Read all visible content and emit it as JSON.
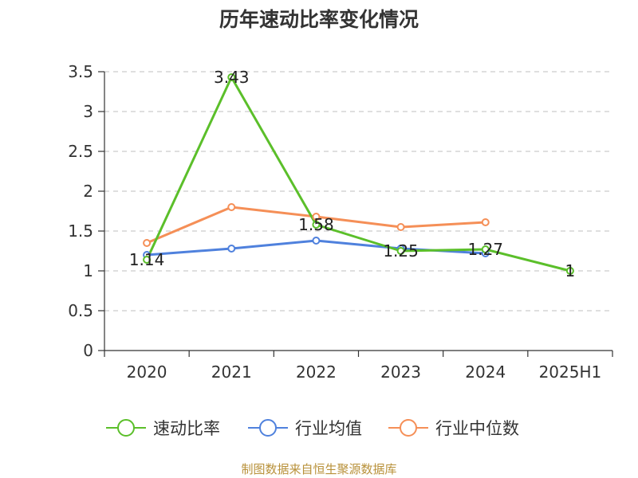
{
  "chart_data": {
    "type": "line",
    "title": "历年速动比率变化情况",
    "categories": [
      "2020",
      "2021",
      "2022",
      "2023",
      "2024",
      "2025H1"
    ],
    "ylim": [
      0,
      3.5
    ],
    "yticks": [
      "0",
      "0.5",
      "1",
      "1.5",
      "2",
      "2.5",
      "3",
      "3.5"
    ],
    "grid": true,
    "legend_position": "bottom",
    "series": [
      {
        "name": "速动比率",
        "color": "#5bbf2a",
        "values": [
          1.14,
          3.43,
          1.58,
          1.25,
          1.27,
          1
        ],
        "labels": [
          "1.14",
          "3.43",
          "1.58",
          "1.25",
          "1.27",
          "1"
        ]
      },
      {
        "name": "行业均值",
        "color": "#4f81dd",
        "values": [
          1.2,
          1.28,
          1.38,
          1.28,
          1.22,
          null
        ]
      },
      {
        "name": "行业中位数",
        "color": "#f58f57",
        "values": [
          1.35,
          1.8,
          1.68,
          1.55,
          1.61,
          null
        ]
      }
    ]
  },
  "source_text": "制图数据来自恒生聚源数据库"
}
